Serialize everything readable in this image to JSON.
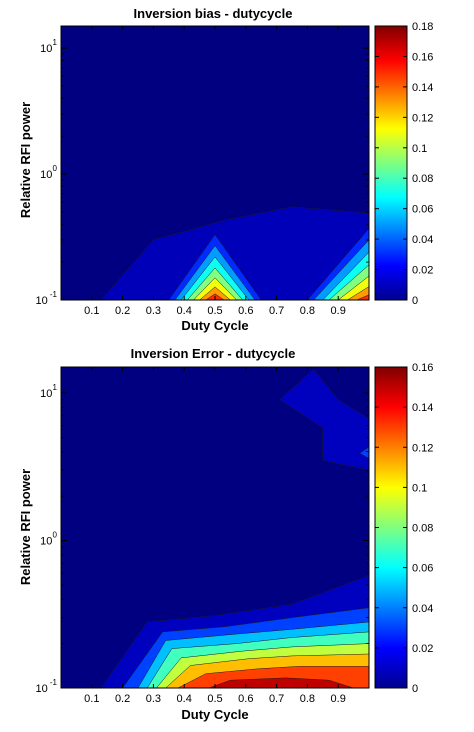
{
  "chart_data": [
    {
      "type": "contourf",
      "title": "Inversion bias - dutycycle",
      "xlabel": "Duty Cycle",
      "ylabel": "Relative RFI power",
      "xlim": [
        0,
        1
      ],
      "ylim": [
        0.1,
        15
      ],
      "yscale": "log",
      "xticks": [
        "0.1",
        "0.2",
        "0.3",
        "0.4",
        "0.5",
        "0.6",
        "0.7",
        "0.8",
        "0.9"
      ],
      "yticks": [
        {
          "base": "10",
          "exp": "-1"
        },
        {
          "base": "10",
          "exp": "0"
        },
        {
          "base": "10",
          "exp": "1"
        }
      ],
      "colormap": "jet",
      "colorbar": {
        "min": 0,
        "max": 0.18,
        "ticks": [
          "0",
          "0.02",
          "0.04",
          "0.06",
          "0.08",
          "0.1",
          "0.12",
          "0.14",
          "0.16",
          "0.18"
        ]
      },
      "contours": [
        {
          "level": 0.01,
          "polygons": [
            [
              [
                0.13,
                0.1
              ],
              [
                0.3,
                0.3
              ],
              [
                0.53,
                0.43
              ],
              [
                0.75,
                0.55
              ],
              [
                1.0,
                0.49
              ],
              [
                1.0,
                0.1
              ]
            ]
          ]
        },
        {
          "level": 0.03,
          "polygons": [
            [
              [
                0.35,
                0.1
              ],
              [
                0.5,
                0.33
              ],
              [
                0.65,
                0.1
              ]
            ],
            [
              [
                0.8,
                0.1
              ],
              [
                1.0,
                0.37
              ],
              [
                1.0,
                0.1
              ]
            ]
          ]
        },
        {
          "level": 0.05,
          "polygons": [
            [
              [
                0.37,
                0.1
              ],
              [
                0.5,
                0.27
              ],
              [
                0.63,
                0.1
              ]
            ],
            [
              [
                0.82,
                0.1
              ],
              [
                1.0,
                0.3
              ],
              [
                1.0,
                0.1
              ]
            ]
          ]
        },
        {
          "level": 0.07,
          "polygons": [
            [
              [
                0.39,
                0.1
              ],
              [
                0.5,
                0.22
              ],
              [
                0.61,
                0.1
              ]
            ],
            [
              [
                0.85,
                0.1
              ],
              [
                1.0,
                0.24
              ],
              [
                1.0,
                0.1
              ]
            ]
          ]
        },
        {
          "level": 0.09,
          "polygons": [
            [
              [
                0.41,
                0.1
              ],
              [
                0.5,
                0.18
              ],
              [
                0.59,
                0.1
              ]
            ],
            [
              [
                0.87,
                0.1
              ],
              [
                1.0,
                0.19
              ],
              [
                1.0,
                0.1
              ]
            ]
          ]
        },
        {
          "level": 0.11,
          "polygons": [
            [
              [
                0.43,
                0.1
              ],
              [
                0.5,
                0.15
              ],
              [
                0.57,
                0.1
              ]
            ],
            [
              [
                0.9,
                0.1
              ],
              [
                1.0,
                0.155
              ],
              [
                1.0,
                0.1
              ]
            ]
          ]
        },
        {
          "level": 0.13,
          "polygons": [
            [
              [
                0.45,
                0.1
              ],
              [
                0.5,
                0.127
              ],
              [
                0.55,
                0.1
              ]
            ],
            [
              [
                0.93,
                0.1
              ],
              [
                1.0,
                0.128
              ],
              [
                1.0,
                0.1
              ]
            ]
          ]
        },
        {
          "level": 0.15,
          "polygons": [
            [
              [
                0.47,
                0.1
              ],
              [
                0.5,
                0.112
              ],
              [
                0.53,
                0.1
              ]
            ],
            [
              [
                0.96,
                0.1
              ],
              [
                1.0,
                0.11
              ],
              [
                1.0,
                0.1
              ]
            ]
          ]
        }
      ]
    },
    {
      "type": "contourf",
      "title": "Inversion Error - dutycycle",
      "xlabel": "Duty Cycle",
      "ylabel": "Relative RFI power",
      "xlim": [
        0,
        1
      ],
      "ylim": [
        0.1,
        15
      ],
      "yscale": "log",
      "xticks": [
        "0.1",
        "0.2",
        "0.3",
        "0.4",
        "0.5",
        "0.6",
        "0.7",
        "0.8",
        "0.9"
      ],
      "yticks": [
        {
          "base": "10",
          "exp": "-1"
        },
        {
          "base": "10",
          "exp": "0"
        },
        {
          "base": "10",
          "exp": "1"
        }
      ],
      "colormap": "jet",
      "colorbar": {
        "min": 0,
        "max": 0.16,
        "ticks": [
          "0",
          "0.02",
          "0.04",
          "0.06",
          "0.08",
          "0.1",
          "0.12",
          "0.14",
          "0.16"
        ]
      },
      "contours": [
        {
          "level": 0.01,
          "polygons": [
            [
              [
                0.13,
                0.1
              ],
              [
                0.28,
                0.28
              ],
              [
                0.5,
                0.31
              ],
              [
                0.75,
                0.37
              ],
              [
                1.0,
                0.58
              ],
              [
                1.0,
                0.1
              ]
            ],
            [
              [
                0.71,
                9.0
              ],
              [
                0.82,
                14.5
              ],
              [
                0.9,
                9.0
              ],
              [
                1.0,
                6.7
              ],
              [
                1.0,
                3.0
              ],
              [
                0.85,
                3.5
              ],
              [
                0.85,
                5.8
              ]
            ]
          ]
        },
        {
          "level": 0.03,
          "polygons": [
            [
              [
                0.2,
                0.1
              ],
              [
                0.33,
                0.24
              ],
              [
                0.53,
                0.26
              ],
              [
                0.75,
                0.3
              ],
              [
                1.0,
                0.35
              ],
              [
                1.0,
                0.1
              ]
            ],
            [
              [
                0.97,
                3.9
              ],
              [
                1.0,
                4.3
              ],
              [
                1.0,
                3.6
              ]
            ]
          ]
        },
        {
          "level": 0.05,
          "polygons": [
            [
              [
                0.25,
                0.1
              ],
              [
                0.34,
                0.21
              ],
              [
                0.55,
                0.23
              ],
              [
                0.75,
                0.25
              ],
              [
                1.0,
                0.28
              ],
              [
                1.0,
                0.1
              ]
            ]
          ]
        },
        {
          "level": 0.07,
          "polygons": [
            [
              [
                0.28,
                0.1
              ],
              [
                0.36,
                0.185
              ],
              [
                0.57,
                0.2
              ],
              [
                0.75,
                0.22
              ],
              [
                1.0,
                0.24
              ],
              [
                1.0,
                0.1
              ]
            ]
          ]
        },
        {
          "level": 0.09,
          "polygons": [
            [
              [
                0.31,
                0.1
              ],
              [
                0.39,
                0.16
              ],
              [
                0.59,
                0.178
              ],
              [
                0.75,
                0.19
              ],
              [
                1.0,
                0.2
              ],
              [
                1.0,
                0.1
              ]
            ]
          ]
        },
        {
          "level": 0.11,
          "polygons": [
            [
              [
                0.34,
                0.1
              ],
              [
                0.42,
                0.142
              ],
              [
                0.61,
                0.158
              ],
              [
                0.75,
                0.165
              ],
              [
                1.0,
                0.17
              ],
              [
                1.0,
                0.1
              ]
            ]
          ]
        },
        {
          "level": 0.13,
          "polygons": [
            [
              [
                0.38,
                0.1
              ],
              [
                0.47,
                0.125
              ],
              [
                0.64,
                0.135
              ],
              [
                0.77,
                0.14
              ],
              [
                1.0,
                0.14
              ],
              [
                1.0,
                0.1
              ]
            ]
          ]
        },
        {
          "level": 0.15,
          "polygons": [
            [
              [
                0.48,
                0.1
              ],
              [
                0.55,
                0.113
              ],
              [
                0.73,
                0.117
              ],
              [
                0.87,
                0.113
              ],
              [
                0.95,
                0.1
              ]
            ]
          ]
        }
      ]
    }
  ]
}
